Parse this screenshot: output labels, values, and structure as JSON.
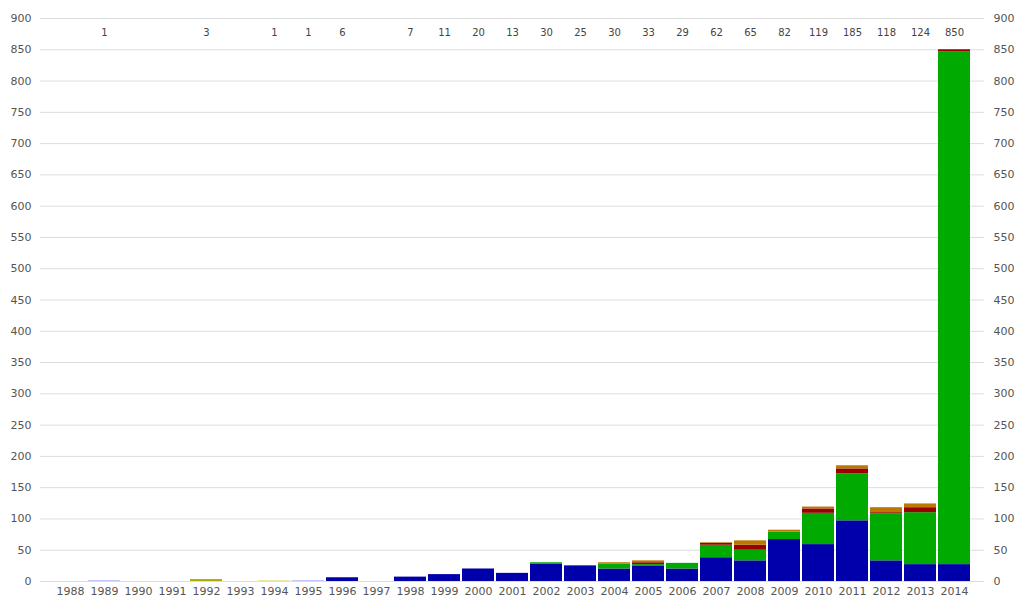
{
  "chart_data": {
    "type": "bar",
    "stacked": true,
    "grid": true,
    "categories": [
      "1988",
      "1989",
      "1990",
      "1991",
      "1992",
      "1993",
      "1994",
      "1995",
      "1996",
      "1997",
      "1998",
      "1999",
      "2000",
      "2001",
      "2002",
      "2003",
      "2004",
      "2005",
      "2006",
      "2007",
      "2008",
      "2009",
      "2010",
      "2011",
      "2012",
      "2013",
      "2014"
    ],
    "totals": [
      null,
      1,
      null,
      null,
      3,
      null,
      1,
      1,
      6,
      null,
      7,
      11,
      20,
      13,
      30,
      25,
      30,
      33,
      29,
      62,
      65,
      82,
      119,
      185,
      118,
      124,
      850
    ],
    "series": [
      {
        "color": "#0000aa",
        "values": [
          0,
          0,
          0,
          0,
          0,
          0,
          0,
          0,
          6,
          0,
          7,
          11,
          20,
          13,
          28,
          25,
          20,
          24,
          20,
          38,
          33,
          67,
          59,
          97,
          33,
          27,
          27
        ]
      },
      {
        "color": "#00aa00",
        "values": [
          0,
          0,
          0,
          0,
          0,
          0,
          0,
          0,
          0,
          0,
          0,
          0,
          0,
          0,
          2,
          0,
          8,
          3,
          9,
          20,
          17,
          12,
          50,
          75,
          75,
          83,
          820
        ]
      },
      {
        "color": "#990000",
        "values": [
          0,
          0,
          0,
          0,
          0,
          0,
          0,
          0,
          0,
          0,
          0,
          0,
          0,
          0,
          0,
          0,
          0,
          3,
          0,
          3,
          8,
          0,
          7,
          8,
          2,
          8,
          3
        ]
      },
      {
        "color": "#bb7700",
        "values": [
          0,
          0,
          0,
          0,
          0,
          0,
          0,
          0,
          0,
          0,
          0,
          0,
          0,
          0,
          0,
          0,
          2,
          3,
          0,
          1,
          7,
          3,
          3,
          5,
          8,
          6,
          0
        ]
      },
      {
        "color": "#a0a0ff",
        "values": [
          0,
          1,
          0,
          0,
          0,
          0,
          0,
          1,
          0,
          0,
          0,
          0,
          0,
          0,
          0,
          0,
          0,
          0,
          0,
          0,
          0,
          0,
          0,
          0,
          0,
          0,
          0
        ]
      },
      {
        "color": "#a8a800",
        "values": [
          0,
          0,
          0,
          0,
          3,
          0,
          0,
          0,
          0,
          0,
          0,
          0,
          0,
          0,
          0,
          0,
          0,
          0,
          0,
          0,
          0,
          0,
          0,
          0,
          0,
          0,
          0
        ]
      },
      {
        "color": "#dddd77",
        "values": [
          0,
          0,
          0,
          0,
          0,
          0,
          1,
          0,
          0,
          0,
          0,
          0,
          0,
          0,
          0,
          0,
          0,
          0,
          0,
          0,
          0,
          0,
          0,
          0,
          0,
          0,
          0
        ]
      }
    ],
    "ylim": [
      0,
      900
    ],
    "yticks": [
      0,
      50,
      100,
      150,
      200,
      250,
      300,
      350,
      400,
      450,
      500,
      550,
      600,
      650,
      700,
      750,
      800,
      850,
      900
    ]
  }
}
